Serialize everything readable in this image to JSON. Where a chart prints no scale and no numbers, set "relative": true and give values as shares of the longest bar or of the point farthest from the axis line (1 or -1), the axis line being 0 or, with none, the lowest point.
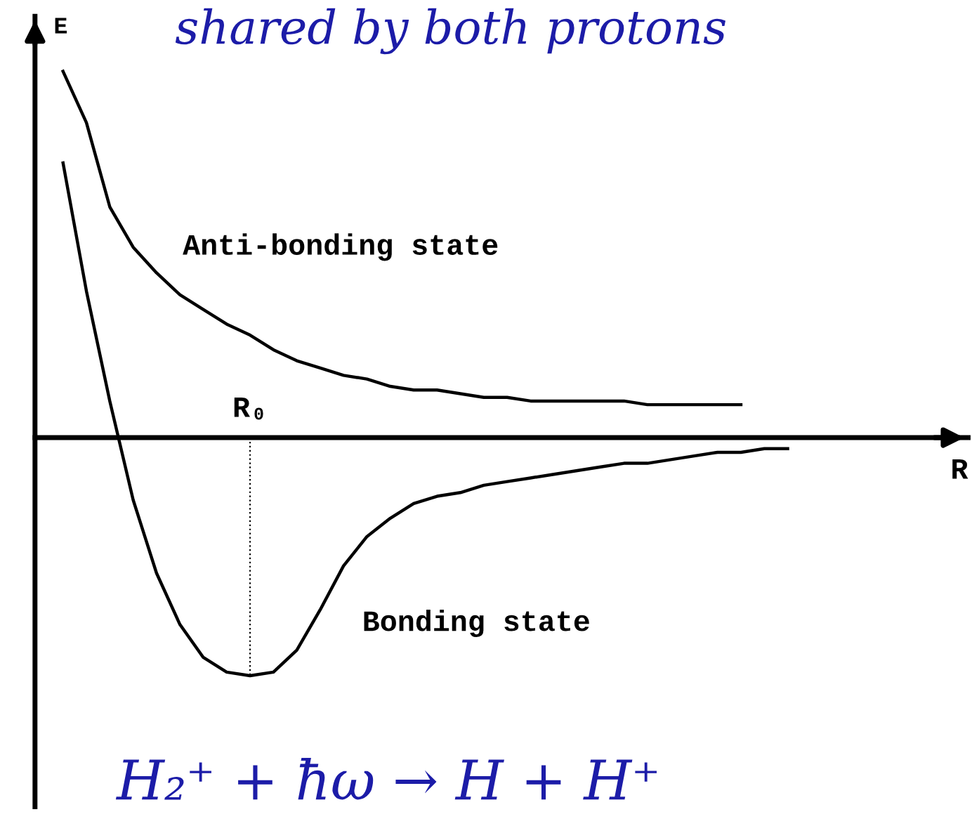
{
  "chart_data": {
    "type": "line",
    "relative": true,
    "ylabel": "E",
    "marker": "none",
    "line_style": "solid",
    "legend": false,
    "categories": [
      null,
      null,
      null,
      null,
      null,
      null,
      null,
      null,
      null,
      null,
      null,
      null,
      null,
      null,
      null,
      null,
      null,
      null,
      null,
      null,
      null,
      null,
      null,
      null,
      null,
      null,
      null,
      null,
      null,
      null,
      null,
      null
    ],
    "series": [
      {
        "color": "#000000",
        "values": [
          1,
          0.86,
          0.63,
          0.52,
          0.45,
          0.39,
          0.35,
          0.31,
          0.28,
          0.24,
          0.21,
          0.19,
          0.17,
          0.16,
          0.14,
          0.13,
          0.13,
          0.12,
          0.11,
          0.11,
          0.1,
          0.1,
          0.1,
          0.1,
          0.1,
          0.09,
          0.09,
          0.09,
          0.09,
          0.09,
          null,
          null
        ]
      },
      {
        "color": "#000000",
        "values": [
          0.75,
          0.4,
          0.1,
          -0.17,
          -0.37,
          -0.51,
          -0.6,
          -0.64,
          -0.65,
          -0.64,
          -0.58,
          -0.47,
          -0.35,
          -0.27,
          -0.22,
          -0.18,
          -0.16,
          -0.15,
          -0.13,
          -0.12,
          -0.11,
          -0.1,
          -0.09,
          -0.08,
          -0.07,
          -0.07,
          -0.06,
          -0.05,
          -0.04,
          -0.04,
          -0.03,
          -0.03
        ]
      }
    ],
    "ref_lines": [
      {
        "axis": "x",
        "label": "R₀",
        "line_style": "dotted",
        "color": "#000000"
      }
    ],
    "annotations": [
      "Anti-bonding state",
      "Bonding state",
      "shared by both protons",
      "H₂⁺ + ħω → H + H⁺",
      "R"
    ]
  }
}
